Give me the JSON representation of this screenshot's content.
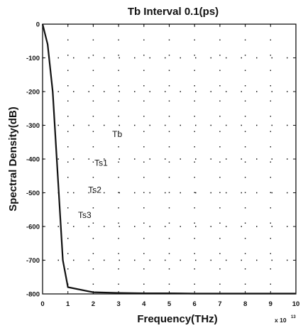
{
  "chart_data": {
    "type": "line",
    "title": "Tb Interval  0.1(ps)",
    "xlabel": "Frequency(THz)",
    "ylabel": "Spectral Density(dB)",
    "x_multiplier_text": "x 10",
    "x_multiplier_exp": "13",
    "xlim": [
      0,
      10
    ],
    "ylim": [
      -800,
      0
    ],
    "x_ticks": [
      0,
      1,
      2,
      3,
      4,
      5,
      6,
      7,
      8,
      9,
      10
    ],
    "x_tick_labels": [
      "0",
      "1",
      "2",
      "3",
      "4",
      "5",
      "6",
      "7",
      "8",
      "9",
      "10"
    ],
    "y_ticks": [
      0,
      -100,
      -200,
      -300,
      -400,
      -500,
      -600,
      -700,
      -800
    ],
    "y_tick_labels": [
      "0",
      "-100",
      "-200",
      "-300",
      "-400",
      "-500",
      "-600",
      "-700",
      "-800"
    ],
    "grid": true,
    "grid_style": "dotted",
    "annotations": [
      {
        "text": "Tb",
        "x": 2.75,
        "y": -335
      },
      {
        "text": "Ts1",
        "x": 2.05,
        "y": -420
      },
      {
        "text": "Ts2",
        "x": 1.8,
        "y": -500
      },
      {
        "text": "Ts3",
        "x": 1.4,
        "y": -575
      }
    ],
    "series": [
      {
        "color": "#111111",
        "x": [
          0,
          0.2,
          0.4,
          0.6,
          0.8,
          1.0,
          2.0,
          3.0,
          4.0,
          5.0,
          6.0,
          7.0,
          8.0,
          9.0,
          10.0
        ],
        "values": [
          0,
          -60,
          -200,
          -450,
          -700,
          -780,
          -795,
          -797,
          -798,
          -798,
          -799,
          -799,
          -799,
          -799,
          -799
        ]
      }
    ]
  }
}
